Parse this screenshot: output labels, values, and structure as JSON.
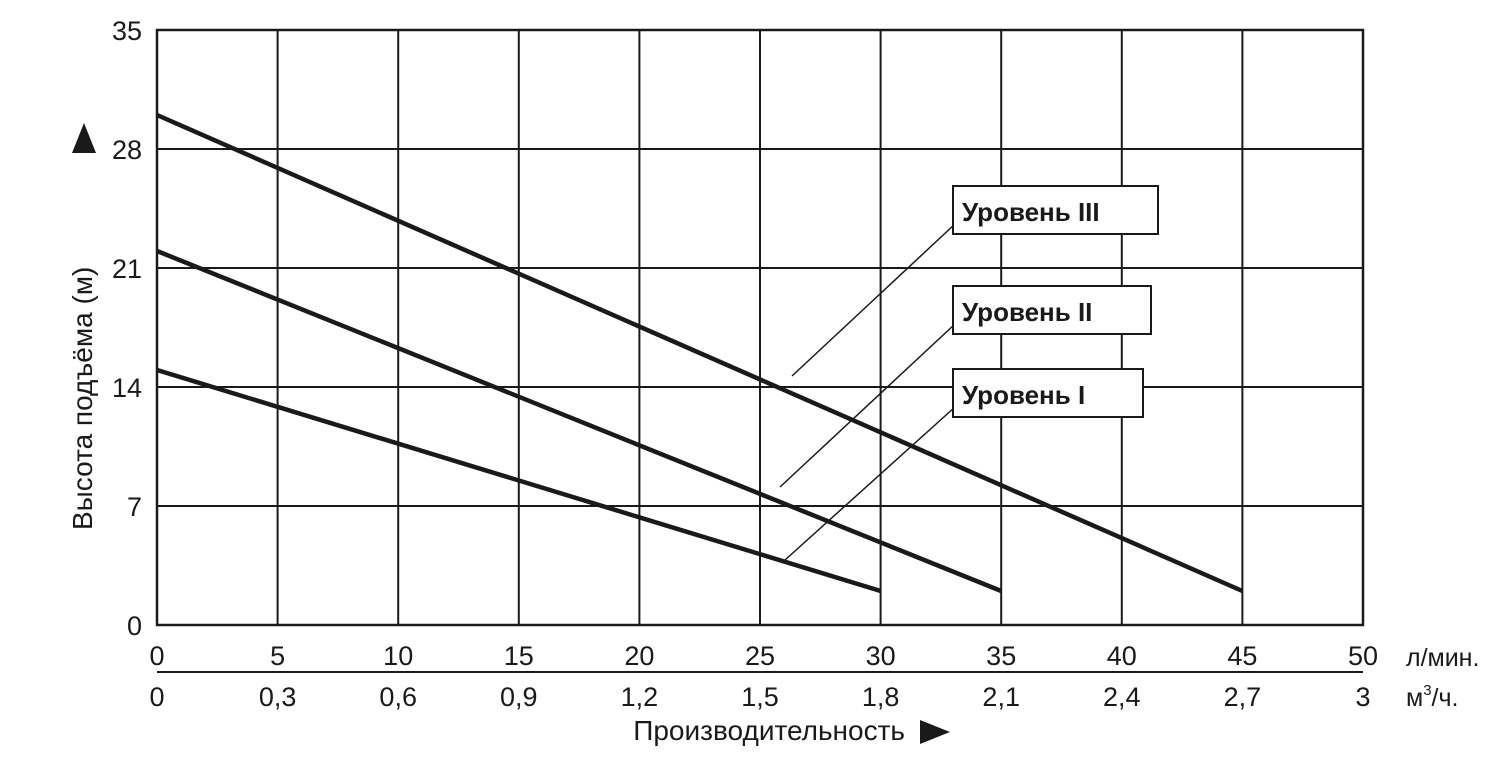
{
  "chart_data": {
    "type": "line",
    "ylabel": "Высота подъёма (м)",
    "xlabel": "Производительность",
    "x_unit_primary": "л/мин.",
    "x_unit_secondary_base": "м",
    "x_unit_secondary_sup": "3",
    "x_unit_secondary_tail": "/ч.",
    "xlim": [
      0,
      50
    ],
    "ylim": [
      0,
      35
    ],
    "x_ticks": [
      "0",
      "5",
      "10",
      "15",
      "20",
      "25",
      "30",
      "35",
      "40",
      "45",
      "50"
    ],
    "x_ticks_secondary": [
      "0",
      "0,3",
      "0,6",
      "0,9",
      "1,2",
      "1,5",
      "1,8",
      "2,1",
      "2,4",
      "2,7",
      "3"
    ],
    "y_ticks": [
      "0",
      "7",
      "14",
      "21",
      "28",
      "35"
    ],
    "grid": true,
    "series": [
      {
        "name": "Уровень I",
        "x": [
          0,
          30
        ],
        "y": [
          15,
          2
        ]
      },
      {
        "name": "Уровень II",
        "x": [
          0,
          35
        ],
        "y": [
          22,
          2
        ]
      },
      {
        "name": "Уровень III",
        "x": [
          0,
          45
        ],
        "y": [
          30,
          2
        ]
      }
    ],
    "colors": {
      "line": "#1a1a1a",
      "grid": "#1a1a1a",
      "background": "#ffffff"
    }
  }
}
